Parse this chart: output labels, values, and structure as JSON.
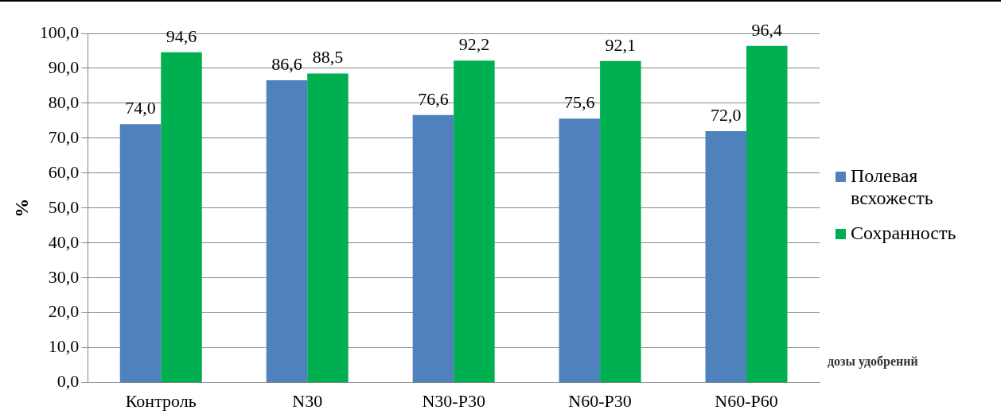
{
  "chart_data": {
    "type": "bar",
    "ylabel": "%",
    "xlabel": "дозы удобрений",
    "categories": [
      "Контроль",
      "N30",
      "N30-P30",
      "N60-P30",
      "N60-P60"
    ],
    "series": [
      {
        "name": "Полевая всхожесть",
        "color": "#4f81bd",
        "values": [
          74.0,
          86.6,
          76.6,
          75.6,
          72.0
        ],
        "value_labels": [
          "74,0",
          "86,6",
          "76,6",
          "75,6",
          "72,0"
        ]
      },
      {
        "name": "Сохранность",
        "color": "#00b050",
        "values": [
          94.6,
          88.5,
          92.2,
          92.1,
          96.4
        ],
        "value_labels": [
          "94,6",
          "88,5",
          "92,2",
          "92,1",
          "96,4"
        ]
      }
    ],
    "ylim": [
      0,
      100
    ],
    "yticks": [
      {
        "value": 0,
        "label": "0,0"
      },
      {
        "value": 10,
        "label": "10,0"
      },
      {
        "value": 20,
        "label": "20,0"
      },
      {
        "value": 30,
        "label": "30,0"
      },
      {
        "value": 40,
        "label": "40,0"
      },
      {
        "value": 50,
        "label": "50,0"
      },
      {
        "value": 60,
        "label": "60,0"
      },
      {
        "value": 70,
        "label": "70,0"
      },
      {
        "value": 80,
        "label": "80,0"
      },
      {
        "value": 90,
        "label": "90,0"
      },
      {
        "value": 100,
        "label": "100,0"
      }
    ],
    "grid": "y",
    "legend": "right"
  }
}
